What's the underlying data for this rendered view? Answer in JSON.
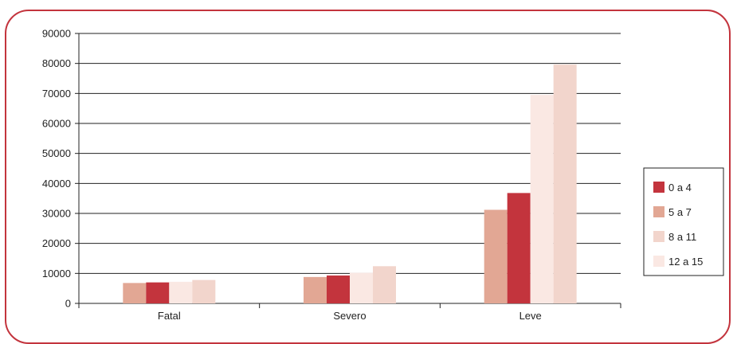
{
  "chart_data": {
    "type": "bar",
    "categories": [
      "Fatal",
      "Severo",
      "Leve"
    ],
    "series": [
      {
        "name": "",
        "values": [
          6800,
          8800,
          31200
        ],
        "color": "#e2a794"
      },
      {
        "name": "0 a 4",
        "values": [
          7000,
          9300,
          36800
        ],
        "color": "#c3343d"
      },
      {
        "name": "",
        "values": [
          7200,
          10200,
          69500
        ],
        "color": "#fae8e3"
      },
      {
        "name": "",
        "values": [
          7800,
          12400,
          79600
        ],
        "color": "#f2d5cc"
      }
    ],
    "legend": [
      {
        "label": "0 a 4",
        "color": "#c3343d"
      },
      {
        "label": "5 a 7",
        "color": "#e2a794"
      },
      {
        "label": "8 a 11",
        "color": "#f2d5cc"
      },
      {
        "label": "12 a 15",
        "color": "#fae8e3"
      }
    ],
    "ylim": [
      0,
      90000
    ],
    "yticks": [
      "0",
      "10000",
      "20000",
      "30000",
      "40000",
      "50000",
      "60000",
      "70000",
      "80000",
      "90000"
    ],
    "grid": true,
    "legend_position": "right",
    "title": "",
    "xlabel": "",
    "ylabel": ""
  }
}
